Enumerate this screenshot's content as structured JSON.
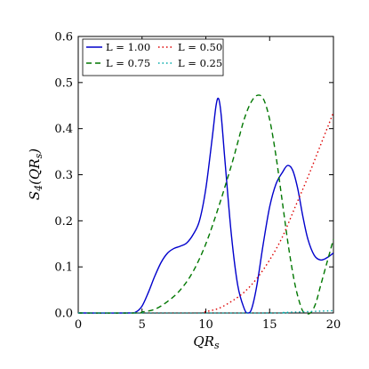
{
  "chart_data": {
    "type": "line",
    "title": "",
    "xlabel": "QR_s",
    "ylabel": "S_4(QR_s)",
    "xlim": [
      0,
      20
    ],
    "ylim": [
      0,
      0.6
    ],
    "xticks": [
      0,
      5,
      10,
      15,
      20
    ],
    "yticks": [
      0.0,
      0.1,
      0.2,
      0.3,
      0.4,
      0.5,
      0.6
    ],
    "xtick_labels": [
      "0",
      "5",
      "10",
      "15",
      "20"
    ],
    "ytick_labels": [
      "0.0",
      "0.1",
      "0.2",
      "0.3",
      "0.4",
      "0.5",
      "0.6"
    ],
    "grid": false,
    "legend_position": "top-left",
    "legend_columns": 2,
    "series": [
      {
        "name": "L = 1.00",
        "color": "#0000cc",
        "style": "solid",
        "points": [
          [
            0,
            0
          ],
          [
            3.8,
            0
          ],
          [
            4.5,
            0.002
          ],
          [
            5.0,
            0.015
          ],
          [
            5.5,
            0.045
          ],
          [
            6.0,
            0.08
          ],
          [
            6.5,
            0.11
          ],
          [
            7.0,
            0.13
          ],
          [
            7.5,
            0.14
          ],
          [
            8.0,
            0.145
          ],
          [
            8.5,
            0.152
          ],
          [
            9.0,
            0.17
          ],
          [
            9.5,
            0.2
          ],
          [
            10.0,
            0.27
          ],
          [
            10.5,
            0.38
          ],
          [
            10.8,
            0.45
          ],
          [
            11.0,
            0.465
          ],
          [
            11.2,
            0.43
          ],
          [
            11.5,
            0.33
          ],
          [
            12.0,
            0.17
          ],
          [
            12.5,
            0.06
          ],
          [
            13.0,
            0.01
          ],
          [
            13.3,
            0.0
          ],
          [
            13.6,
            0.01
          ],
          [
            14.0,
            0.06
          ],
          [
            14.5,
            0.15
          ],
          [
            15.0,
            0.23
          ],
          [
            15.5,
            0.28
          ],
          [
            16.0,
            0.305
          ],
          [
            16.4,
            0.32
          ],
          [
            16.8,
            0.31
          ],
          [
            17.2,
            0.27
          ],
          [
            17.6,
            0.21
          ],
          [
            18.0,
            0.16
          ],
          [
            18.5,
            0.125
          ],
          [
            19.0,
            0.115
          ],
          [
            19.5,
            0.12
          ],
          [
            20.0,
            0.13
          ]
        ]
      },
      {
        "name": "L = 0.75",
        "color": "#007700",
        "style": "dashed",
        "points": [
          [
            0,
            0
          ],
          [
            4.5,
            0
          ],
          [
            5.0,
            0.002
          ],
          [
            6.0,
            0.008
          ],
          [
            7.0,
            0.025
          ],
          [
            8.0,
            0.05
          ],
          [
            9.0,
            0.09
          ],
          [
            10.0,
            0.15
          ],
          [
            11.0,
            0.23
          ],
          [
            12.0,
            0.32
          ],
          [
            12.5,
            0.37
          ],
          [
            13.0,
            0.42
          ],
          [
            13.5,
            0.455
          ],
          [
            14.0,
            0.472
          ],
          [
            14.5,
            0.465
          ],
          [
            15.0,
            0.42
          ],
          [
            15.5,
            0.34
          ],
          [
            16.0,
            0.24
          ],
          [
            16.5,
            0.14
          ],
          [
            17.0,
            0.06
          ],
          [
            17.5,
            0.01
          ],
          [
            17.8,
            0.0
          ],
          [
            18.2,
            0.0
          ],
          [
            18.6,
            0.02
          ],
          [
            19.0,
            0.06
          ],
          [
            19.5,
            0.11
          ],
          [
            20.0,
            0.16
          ]
        ]
      },
      {
        "name": "L = 0.50",
        "color": "#dd0000",
        "style": "dotted",
        "points": [
          [
            0,
            0
          ],
          [
            9.0,
            0
          ],
          [
            10.0,
            0.003
          ],
          [
            11.0,
            0.01
          ],
          [
            12.0,
            0.025
          ],
          [
            13.0,
            0.045
          ],
          [
            14.0,
            0.075
          ],
          [
            15.0,
            0.115
          ],
          [
            16.0,
            0.165
          ],
          [
            17.0,
            0.23
          ],
          [
            18.0,
            0.295
          ],
          [
            19.0,
            0.365
          ],
          [
            20.0,
            0.435
          ]
        ]
      },
      {
        "name": "L = 0.25",
        "color": "#00aaaa",
        "style": "dotted",
        "points": [
          [
            0,
            0
          ],
          [
            15.0,
            0
          ],
          [
            16.0,
            0.001
          ],
          [
            17.0,
            0.002
          ],
          [
            18.0,
            0.003
          ],
          [
            19.0,
            0.004
          ],
          [
            20.0,
            0.005
          ]
        ]
      }
    ]
  }
}
